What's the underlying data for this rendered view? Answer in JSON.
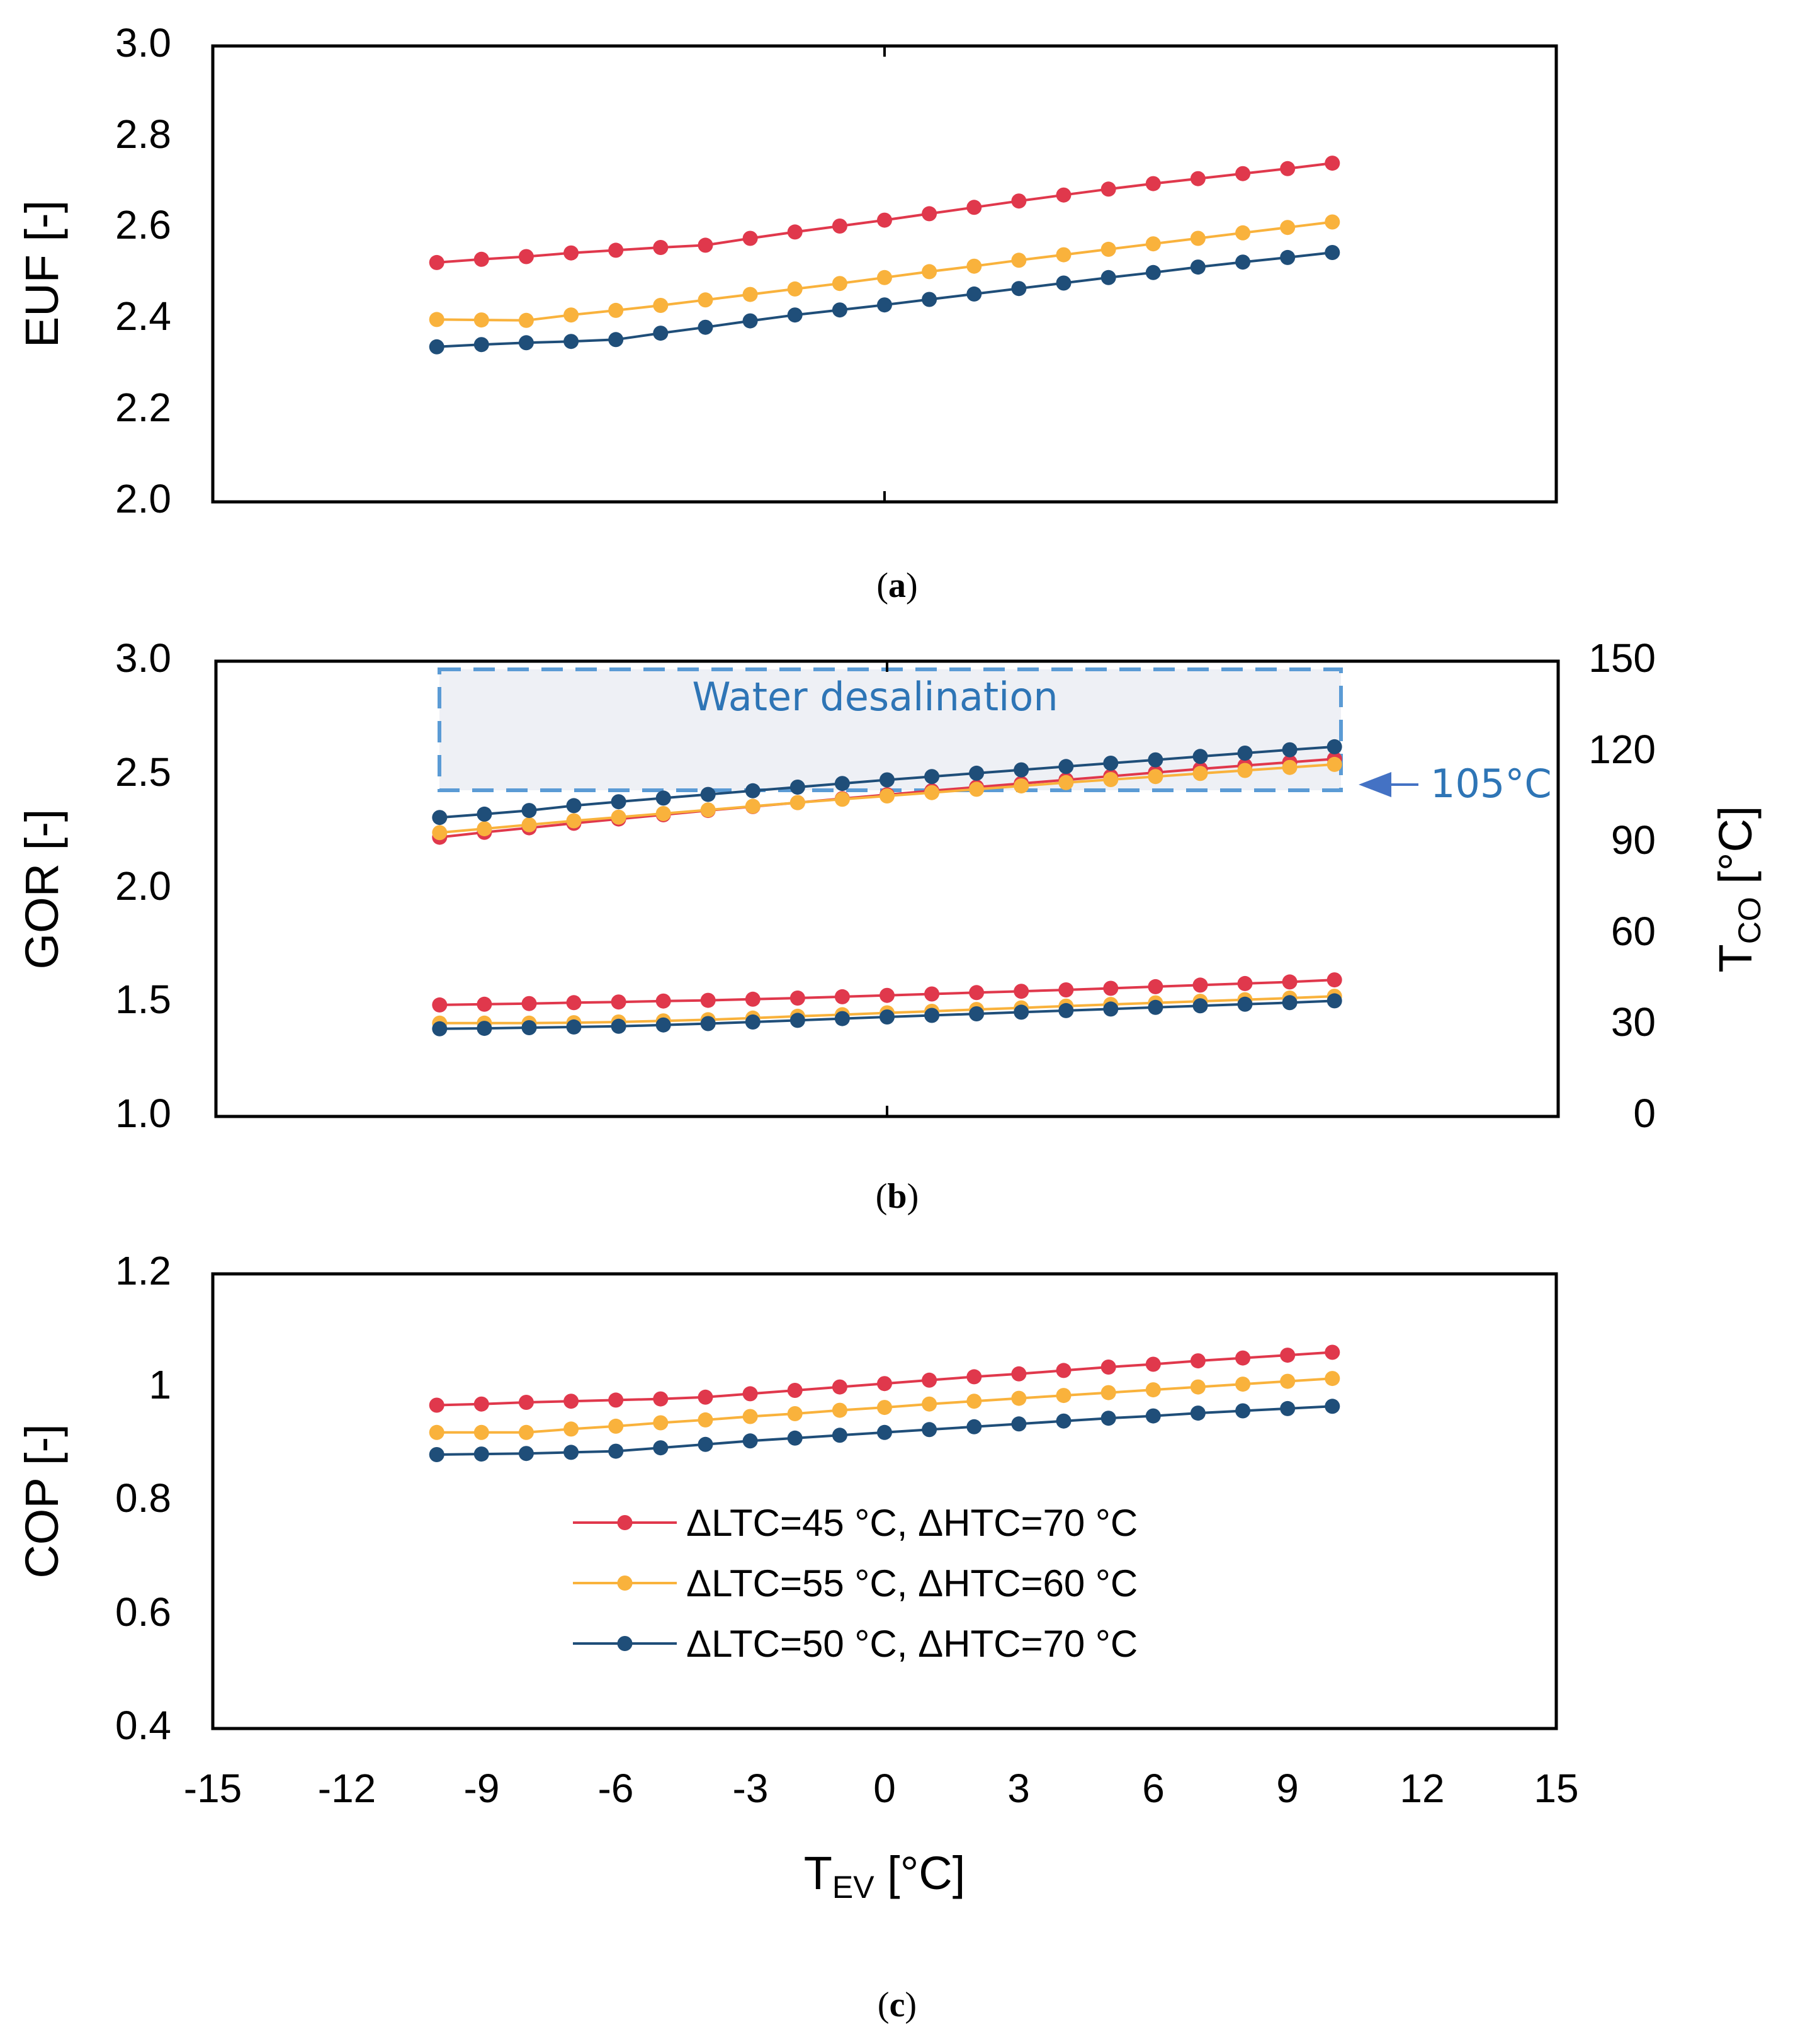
{
  "series_style": [
    {
      "key": "s45_70",
      "color": "#E0384C"
    },
    {
      "key": "s55_60",
      "color": "#F9B23C"
    },
    {
      "key": "s50_70",
      "color": "#1F4E79"
    }
  ],
  "legend": [
    {
      "label": "ΔLTC=45 °C, ΔHTC=70 °C",
      "color": "#E0384C"
    },
    {
      "label": "ΔLTC=55 °C, ΔHTC=60 °C",
      "color": "#F9B23C"
    },
    {
      "label": "ΔLTC=50 °C, ΔHTC=70 °C",
      "color": "#1F4E79"
    }
  ],
  "annotation": {
    "box_label": "Water desalination",
    "arrow_label": "105°C",
    "box_color": "#5B9BD5",
    "box_fill": "#EEF0F5"
  },
  "chart_data": [
    {
      "id": "a",
      "type": "line",
      "panel_label": "(a)",
      "panel_label_pre": "(",
      "panel_label_letter": "a",
      "panel_label_post": ")",
      "ylabel": "EUF [-]",
      "ylim": [
        2.0,
        3.0
      ],
      "yticks": [
        "2.0",
        "2.2",
        "2.4",
        "2.6",
        "2.8",
        "3.0"
      ],
      "xlim": [
        -15,
        15
      ],
      "x": [
        -10,
        -9,
        -8,
        -7,
        -6,
        -5,
        -4,
        -3,
        -2,
        -1,
        0,
        1,
        2,
        3,
        4,
        5,
        6,
        7,
        8,
        9,
        10
      ],
      "series": [
        {
          "name": "ΔLTC=45 °C, ΔHTC=70 °C",
          "color": "#E0384C",
          "values": [
            2.525,
            2.532,
            2.538,
            2.546,
            2.552,
            2.558,
            2.563,
            2.578,
            2.592,
            2.605,
            2.618,
            2.632,
            2.646,
            2.66,
            2.673,
            2.686,
            2.698,
            2.709,
            2.72,
            2.731,
            2.743
          ]
        },
        {
          "name": "ΔLTC=55 °C, ΔHTC=60 °C",
          "color": "#F9B23C",
          "values": [
            2.4,
            2.399,
            2.398,
            2.41,
            2.42,
            2.431,
            2.443,
            2.455,
            2.467,
            2.479,
            2.492,
            2.505,
            2.517,
            2.53,
            2.542,
            2.554,
            2.566,
            2.578,
            2.59,
            2.602,
            2.614
          ]
        },
        {
          "name": "ΔLTC=50 °C, ΔHTC=70 °C",
          "color": "#1F4E79",
          "values": [
            2.34,
            2.345,
            2.349,
            2.352,
            2.356,
            2.37,
            2.383,
            2.397,
            2.41,
            2.421,
            2.432,
            2.444,
            2.456,
            2.468,
            2.48,
            2.492,
            2.503,
            2.515,
            2.526,
            2.536,
            2.547
          ]
        }
      ]
    },
    {
      "id": "b",
      "type": "line",
      "panel_label": "(b)",
      "panel_label_pre": "(",
      "panel_label_letter": "b",
      "panel_label_post": ")",
      "ylabel": "GOR [-]",
      "ylim": [
        1.0,
        3.0
      ],
      "yticks": [
        "1.0",
        "1.5",
        "2.0",
        "2.5",
        "3.0"
      ],
      "y2label_main": "T",
      "y2label_sub": "CO",
      "y2label_unit": " [°C]",
      "y2lim": [
        0,
        150
      ],
      "y2ticks": [
        "0",
        "30",
        "60",
        "90",
        "120",
        "150"
      ],
      "xlim": [
        -15,
        15
      ],
      "x": [
        -10,
        -9,
        -8,
        -7,
        -6,
        -5,
        -4,
        -3,
        -2,
        -1,
        0,
        1,
        2,
        3,
        4,
        5,
        6,
        7,
        8,
        9,
        10
      ],
      "series": [
        {
          "name": "GOR ΔLTC=45 °C, ΔHTC=70 °C",
          "axis": "left",
          "color": "#E0384C",
          "values": [
            1.49,
            1.493,
            1.496,
            1.5,
            1.503,
            1.507,
            1.51,
            1.515,
            1.52,
            1.526,
            1.532,
            1.538,
            1.544,
            1.55,
            1.556,
            1.563,
            1.57,
            1.577,
            1.584,
            1.591,
            1.6
          ]
        },
        {
          "name": "GOR ΔLTC=55 °C, ΔHTC=60 °C",
          "axis": "left",
          "color": "#F9B23C",
          "values": [
            1.41,
            1.41,
            1.41,
            1.412,
            1.415,
            1.42,
            1.425,
            1.432,
            1.44,
            1.447,
            1.455,
            1.462,
            1.47,
            1.477,
            1.485,
            1.492,
            1.499,
            1.506,
            1.513,
            1.52,
            1.528
          ]
        },
        {
          "name": "GOR ΔLTC=50 °C, ΔHTC=70 °C",
          "axis": "left",
          "color": "#1F4E79",
          "values": [
            1.385,
            1.387,
            1.39,
            1.393,
            1.396,
            1.402,
            1.408,
            1.415,
            1.422,
            1.43,
            1.437,
            1.444,
            1.451,
            1.458,
            1.465,
            1.472,
            1.479,
            1.486,
            1.493,
            1.5,
            1.508
          ]
        },
        {
          "name": "TCO ΔLTC=45 °C, ΔHTC=70 °C",
          "axis": "right",
          "color": "#E0384C",
          "values": [
            92.0,
            93.6,
            95.1,
            96.6,
            98.0,
            99.4,
            100.8,
            102.1,
            103.4,
            104.7,
            106.0,
            107.3,
            108.5,
            109.7,
            110.9,
            112.1,
            113.3,
            114.5,
            115.6,
            116.7,
            117.8
          ]
        },
        {
          "name": "TCO ΔLTC=55 °C, ΔHTC=60 °C",
          "axis": "right",
          "color": "#F9B23C",
          "values": [
            93.5,
            94.8,
            96.1,
            97.4,
            98.6,
            99.8,
            101.0,
            102.2,
            103.4,
            104.5,
            105.6,
            106.7,
            107.8,
            108.9,
            110.0,
            111.0,
            112.0,
            113.0,
            114.0,
            115.0,
            116.0
          ]
        },
        {
          "name": "TCO ΔLTC=50 °C, ΔHTC=70 °C",
          "axis": "right",
          "color": "#1F4E79",
          "values": [
            98.5,
            99.6,
            100.8,
            102.4,
            103.7,
            104.9,
            106.1,
            107.3,
            108.5,
            109.7,
            110.9,
            112.0,
            113.1,
            114.2,
            115.3,
            116.4,
            117.5,
            118.6,
            119.7,
            120.8,
            121.8
          ]
        }
      ]
    },
    {
      "id": "c",
      "type": "line",
      "panel_label": "(c)",
      "panel_label_pre": "(",
      "panel_label_letter": "c",
      "panel_label_post": ")",
      "ylabel": "COP [-]",
      "ylim": [
        0.4,
        1.2
      ],
      "yticks": [
        "0.4",
        "0.6",
        "0.8",
        "1",
        "1.2"
      ],
      "xlabel_main": "T",
      "xlabel_sub": "EV",
      "xlabel_unit": " [°C]",
      "xlim": [
        -15,
        15
      ],
      "xticks": [
        "-15",
        "-12",
        "-9",
        "-6",
        "-3",
        "0",
        "3",
        "6",
        "9",
        "12",
        "15"
      ],
      "legend_position": "center-left",
      "x": [
        -10,
        -9,
        -8,
        -7,
        -6,
        -5,
        -4,
        -3,
        -2,
        -1,
        0,
        1,
        2,
        3,
        4,
        5,
        6,
        7,
        8,
        9,
        10
      ],
      "series": [
        {
          "name": "ΔLTC=45 °C, ΔHTC=70 °C",
          "color": "#E0384C",
          "values": [
            0.969,
            0.971,
            0.974,
            0.976,
            0.978,
            0.98,
            0.983,
            0.989,
            0.995,
            1.001,
            1.007,
            1.013,
            1.019,
            1.024,
            1.03,
            1.036,
            1.041,
            1.047,
            1.052,
            1.057,
            1.062
          ]
        },
        {
          "name": "ΔLTC=55 °C, ΔHTC=60 °C",
          "color": "#F9B23C",
          "values": [
            0.921,
            0.921,
            0.921,
            0.927,
            0.932,
            0.938,
            0.943,
            0.949,
            0.954,
            0.96,
            0.965,
            0.971,
            0.976,
            0.981,
            0.986,
            0.991,
            0.996,
            1.001,
            1.006,
            1.011,
            1.016
          ]
        },
        {
          "name": "ΔLTC=50 °C, ΔHTC=70 °C",
          "color": "#1F4E79",
          "values": [
            0.882,
            0.883,
            0.884,
            0.886,
            0.888,
            0.894,
            0.9,
            0.906,
            0.911,
            0.916,
            0.921,
            0.926,
            0.931,
            0.936,
            0.941,
            0.946,
            0.95,
            0.955,
            0.959,
            0.963,
            0.967
          ]
        }
      ]
    }
  ]
}
